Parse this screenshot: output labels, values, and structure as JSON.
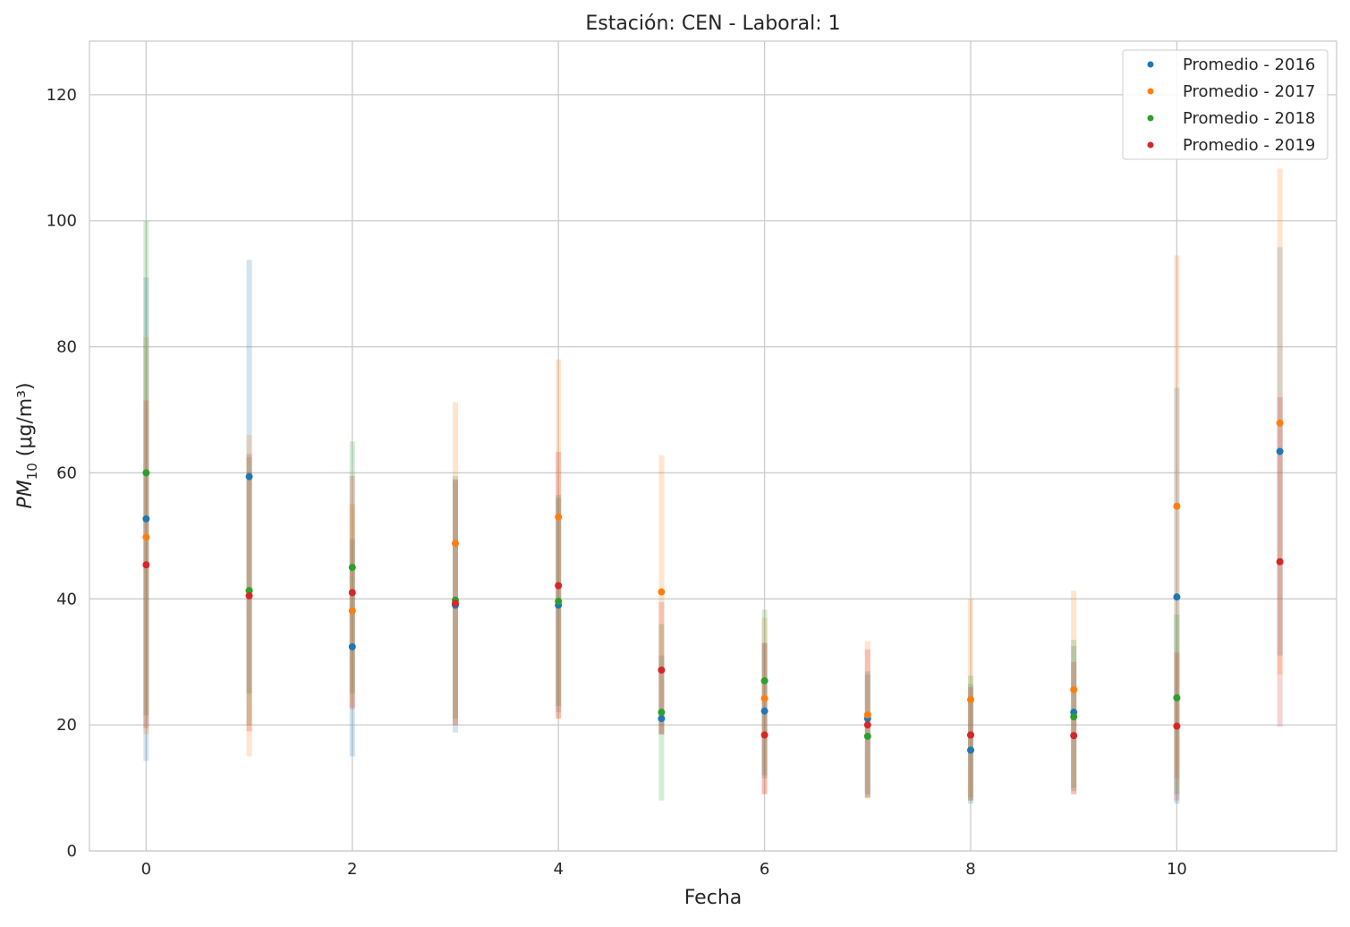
{
  "chart_data": {
    "type": "scatter",
    "title": "Estación: CEN - Laboral: 1",
    "xlabel": "Fecha",
    "ylabel_main": "PM",
    "ylabel_sub": "10",
    "ylabel_unit": " (μg/m³)",
    "xlim": [
      -0.55,
      11.55
    ],
    "ylim": [
      0,
      128.5
    ],
    "xticks": [
      0,
      2,
      4,
      6,
      8,
      10
    ],
    "yticks": [
      0,
      20,
      40,
      60,
      80,
      100,
      120
    ],
    "grid": true,
    "legend_position": "top-right",
    "x": [
      0,
      1,
      2,
      3,
      4,
      5,
      6,
      7,
      8,
      9,
      10,
      11
    ],
    "series": [
      {
        "name": "Promedio - 2016",
        "color": "#1f77b4",
        "values": [
          52.7,
          59.4,
          32.4,
          39.0,
          39.0,
          21.0,
          22.2,
          21.0,
          16.0,
          22.0,
          40.3,
          63.4
        ],
        "low": [
          14.3,
          25.0,
          15.0,
          18.8,
          22.0,
          18.5,
          11.5,
          9.0,
          7.5,
          9.5,
          7.5,
          31.0
        ],
        "high": [
          91.0,
          93.8,
          49.5,
          58.8,
          56.0,
          31.0,
          33.0,
          28.5,
          26.5,
          32.5,
          73.5,
          95.8
        ]
      },
      {
        "name": "Promedio - 2017",
        "color": "#ff7f0e",
        "values": [
          49.8,
          41.3,
          38.1,
          48.8,
          53.0,
          41.1,
          24.2,
          21.6,
          24.0,
          25.6,
          54.7,
          67.9
        ],
        "low": [
          18.5,
          15.0,
          22.8,
          20.0,
          21.0,
          18.5,
          9.0,
          8.3,
          8.5,
          9.0,
          11.5,
          28.0
        ],
        "high": [
          81.5,
          66.0,
          55.0,
          71.2,
          78.0,
          62.8,
          37.0,
          33.3,
          40.0,
          41.3,
          94.5,
          108.3
        ]
      },
      {
        "name": "Promedio - 2018",
        "color": "#2ca02c",
        "values": [
          60.0,
          41.3,
          45.0,
          39.8,
          39.6,
          22.0,
          27.0,
          18.2,
          18.4,
          21.3,
          24.3,
          null
        ],
        "low": [
          21.5,
          20.0,
          25.0,
          21.0,
          23.0,
          8.0,
          12.0,
          8.5,
          8.0,
          10.0,
          9.0,
          null
        ],
        "high": [
          100.0,
          62.5,
          65.0,
          59.5,
          56.5,
          36.0,
          38.3,
          28.0,
          27.8,
          33.5,
          37.5,
          null
        ]
      },
      {
        "name": "Promedio - 2019",
        "color": "#d62728",
        "values": [
          45.4,
          40.5,
          41.0,
          39.3,
          42.1,
          28.7,
          18.4,
          20.0,
          18.4,
          18.3,
          19.8,
          45.9
        ],
        "low": [
          19.5,
          19.0,
          22.5,
          20.0,
          21.0,
          18.5,
          9.0,
          8.5,
          8.0,
          9.0,
          8.0,
          19.7
        ],
        "high": [
          71.5,
          63.0,
          59.5,
          59.0,
          63.3,
          39.5,
          33.0,
          32.0,
          26.0,
          30.0,
          31.5,
          72.0
        ]
      }
    ]
  }
}
